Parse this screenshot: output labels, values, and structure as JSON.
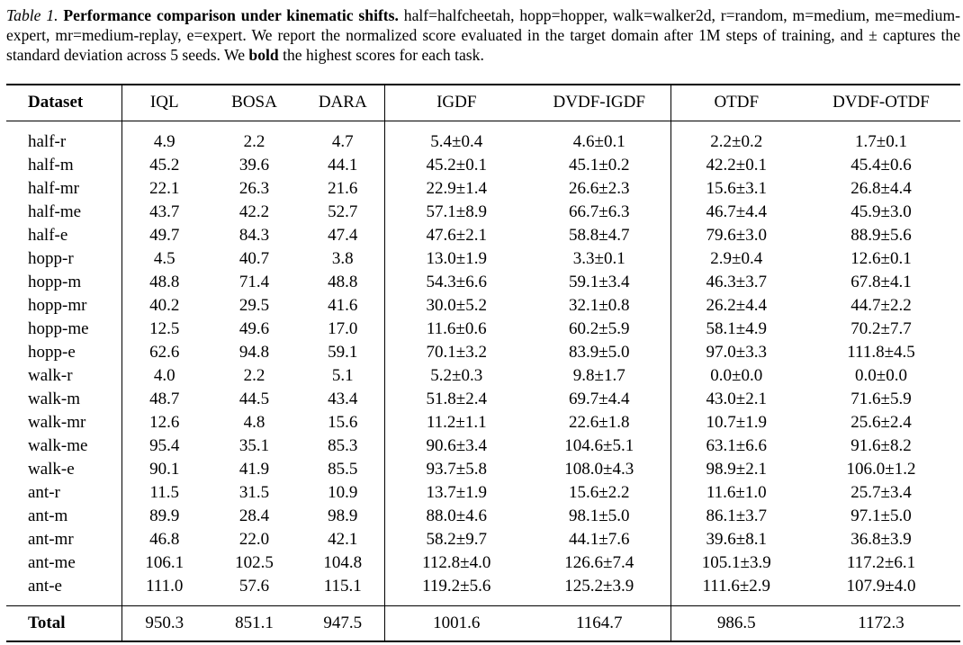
{
  "caption": {
    "label": "Table 1.",
    "title": "Performance comparison under kinematic shifts.",
    "part1": " half=halfcheetah, hopp=hopper, walk=walker2d, r=random, m=medium, me=medium-expert, mr=medium-replay, e=expert. We report the normalized score evaluated in the target domain after 1M steps of training, and ± captures the standard deviation across 5 seeds. We ",
    "bold_word": "bold",
    "part2": " the highest scores for each task."
  },
  "table": {
    "headers": [
      "Dataset",
      "IQL",
      "BOSA",
      "DARA",
      "IGDF",
      "DVDF-IGDF",
      "OTDF",
      "DVDF-OTDF"
    ],
    "rows": [
      {
        "cells": [
          "half-r",
          "4.9",
          "2.2",
          "4.7",
          "5.4±0.4",
          "4.6±0.1",
          "2.2±0.2",
          "1.7±0.1"
        ],
        "bold": [
          false,
          false,
          false,
          false,
          true,
          false,
          true,
          false
        ]
      },
      {
        "cells": [
          "half-m",
          "45.2",
          "39.6",
          "44.1",
          "45.2±0.1",
          "45.1±0.2",
          "42.2±0.1",
          "45.4±0.6"
        ],
        "bold": [
          false,
          true,
          false,
          false,
          true,
          false,
          false,
          true
        ]
      },
      {
        "cells": [
          "half-mr",
          "22.1",
          "26.3",
          "21.6",
          "22.9±1.4",
          "26.6±2.3",
          "15.6±3.1",
          "26.8±4.4"
        ],
        "bold": [
          false,
          false,
          true,
          false,
          false,
          true,
          false,
          true
        ]
      },
      {
        "cells": [
          "half-me",
          "43.7",
          "42.2",
          "52.7",
          "57.1±8.9",
          "66.7±6.3",
          "46.7±4.4",
          "45.9±3.0"
        ],
        "bold": [
          false,
          false,
          false,
          false,
          false,
          true,
          true,
          false
        ]
      },
      {
        "cells": [
          "half-e",
          "49.7",
          "84.3",
          "47.4",
          "47.6±2.1",
          "58.8±4.7",
          "79.6±3.0",
          "88.9±5.6"
        ],
        "bold": [
          false,
          false,
          true,
          false,
          false,
          true,
          false,
          true
        ]
      },
      {
        "cells": [
          "hopp-r",
          "4.5",
          "40.7",
          "3.8",
          "13.0±1.9",
          "3.3±0.1",
          "2.9±0.4",
          "12.6±0.1"
        ],
        "bold": [
          false,
          false,
          true,
          false,
          true,
          false,
          false,
          true
        ]
      },
      {
        "cells": [
          "hopp-m",
          "48.8",
          "71.4",
          "48.8",
          "54.3±6.6",
          "59.1±3.4",
          "46.3±3.7",
          "67.8±4.1"
        ],
        "bold": [
          false,
          false,
          true,
          false,
          false,
          true,
          false,
          true
        ]
      },
      {
        "cells": [
          "hopp-mr",
          "40.2",
          "29.5",
          "41.6",
          "30.0±5.2",
          "32.1±0.8",
          "26.2±4.4",
          "44.7±2.2"
        ],
        "bold": [
          false,
          false,
          false,
          false,
          false,
          true,
          false,
          true
        ]
      },
      {
        "cells": [
          "hopp-me",
          "12.5",
          "49.6",
          "17.0",
          "11.6±0.6",
          "60.2±5.9",
          "58.1±4.9",
          "70.2±7.7"
        ],
        "bold": [
          false,
          false,
          false,
          false,
          false,
          true,
          false,
          true
        ]
      },
      {
        "cells": [
          "hopp-e",
          "62.6",
          "94.8",
          "59.1",
          "70.1±3.2",
          "83.9±5.0",
          "97.0±3.3",
          "111.8±4.5"
        ],
        "bold": [
          false,
          false,
          false,
          false,
          false,
          true,
          false,
          true
        ]
      },
      {
        "cells": [
          "walk-r",
          "4.0",
          "2.2",
          "5.1",
          "5.2±0.3",
          "9.8±1.7",
          "0.0±0.0",
          "0.0±0.0"
        ],
        "bold": [
          false,
          false,
          false,
          false,
          false,
          true,
          false,
          false
        ]
      },
      {
        "cells": [
          "walk-m",
          "48.7",
          "44.5",
          "43.4",
          "51.8±2.4",
          "69.7±4.4",
          "43.0±2.1",
          "71.6±5.9"
        ],
        "bold": [
          false,
          false,
          false,
          false,
          false,
          true,
          false,
          true
        ]
      },
      {
        "cells": [
          "walk-mr",
          "12.6",
          "4.8",
          "15.6",
          "11.2±1.1",
          "22.6±1.8",
          "10.7±1.9",
          "25.6±2.4"
        ],
        "bold": [
          false,
          false,
          false,
          false,
          false,
          true,
          false,
          true
        ]
      },
      {
        "cells": [
          "walk-me",
          "95.4",
          "35.1",
          "85.3",
          "90.6±3.4",
          "104.6±5.1",
          "63.1±6.6",
          "91.6±8.2"
        ],
        "bold": [
          false,
          false,
          false,
          false,
          false,
          true,
          false,
          true
        ]
      },
      {
        "cells": [
          "walk-e",
          "90.1",
          "41.9",
          "85.5",
          "93.7±5.8",
          "108.0±4.3",
          "98.9±2.1",
          "106.0±1.2"
        ],
        "bold": [
          false,
          false,
          false,
          false,
          false,
          true,
          false,
          true
        ]
      },
      {
        "cells": [
          "ant-r",
          "11.5",
          "31.5",
          "10.9",
          "13.7±1.9",
          "15.6±2.2",
          "11.6±1.0",
          "25.7±3.4"
        ],
        "bold": [
          false,
          false,
          true,
          false,
          false,
          true,
          false,
          true
        ]
      },
      {
        "cells": [
          "ant-m",
          "89.9",
          "28.4",
          "98.9",
          "88.0±4.6",
          "98.1±5.0",
          "86.1±3.7",
          "97.1±5.0"
        ],
        "bold": [
          false,
          false,
          false,
          true,
          false,
          true,
          false,
          true
        ]
      },
      {
        "cells": [
          "ant-mr",
          "46.8",
          "22.0",
          "42.1",
          "58.2±9.7",
          "44.1±7.6",
          "39.6±8.1",
          "36.8±3.9"
        ],
        "bold": [
          false,
          false,
          false,
          false,
          true,
          false,
          true,
          false
        ]
      },
      {
        "cells": [
          "ant-me",
          "106.1",
          "102.5",
          "104.8",
          "112.8±4.0",
          "126.6±7.4",
          "105.1±3.9",
          "117.2±6.1"
        ],
        "bold": [
          false,
          false,
          false,
          false,
          false,
          true,
          false,
          true
        ]
      },
      {
        "cells": [
          "ant-e",
          "111.0",
          "57.6",
          "115.1",
          "119.2±5.6",
          "125.2±3.9",
          "111.6±2.9",
          "107.9±4.0"
        ],
        "bold": [
          false,
          false,
          false,
          false,
          false,
          true,
          true,
          false
        ]
      }
    ],
    "total": {
      "cells": [
        "Total",
        "950.3",
        "851.1",
        "947.5",
        "1001.6",
        "1164.7",
        "986.5",
        "1172.3"
      ],
      "bold": [
        true,
        false,
        false,
        false,
        false,
        true,
        false,
        true
      ]
    }
  }
}
